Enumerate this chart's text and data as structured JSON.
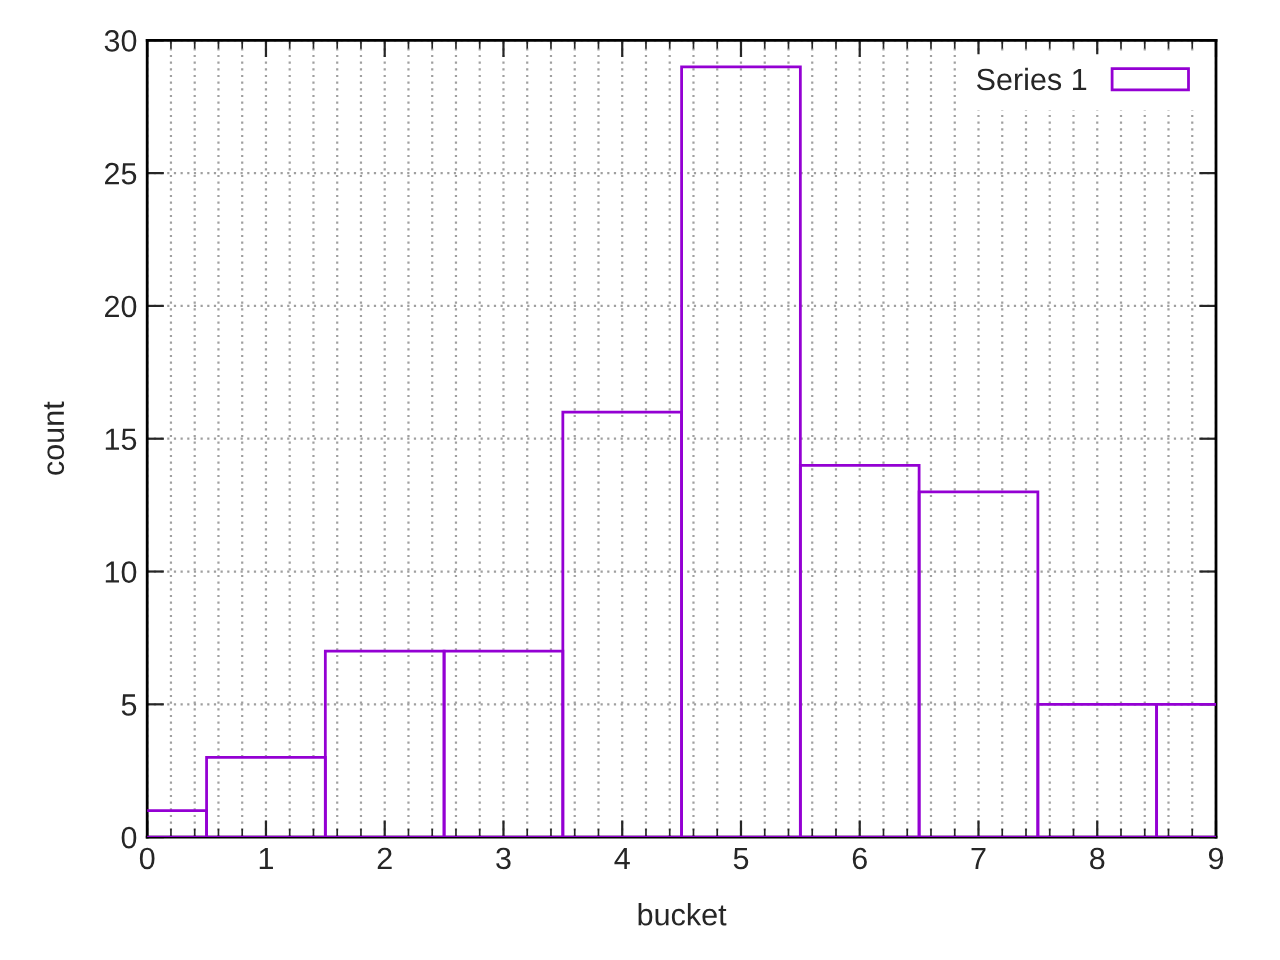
{
  "chart_data": {
    "type": "bar",
    "xlabel": "bucket",
    "ylabel": "count",
    "x": [
      0,
      1,
      2,
      3,
      4,
      5,
      6,
      7,
      8,
      9
    ],
    "series": [
      {
        "name": "Series 1",
        "color": "#9400d3",
        "values": [
          1,
          3,
          7,
          7,
          16,
          29,
          14,
          13,
          5,
          5
        ]
      }
    ],
    "xlim": [
      0,
      9
    ],
    "xticks": [
      0,
      1,
      2,
      3,
      4,
      5,
      6,
      7,
      8,
      9
    ],
    "ylim": [
      0,
      30
    ],
    "yticks": [
      0,
      5,
      10,
      15,
      20,
      25,
      30
    ],
    "grid": true,
    "legend": "top right"
  }
}
